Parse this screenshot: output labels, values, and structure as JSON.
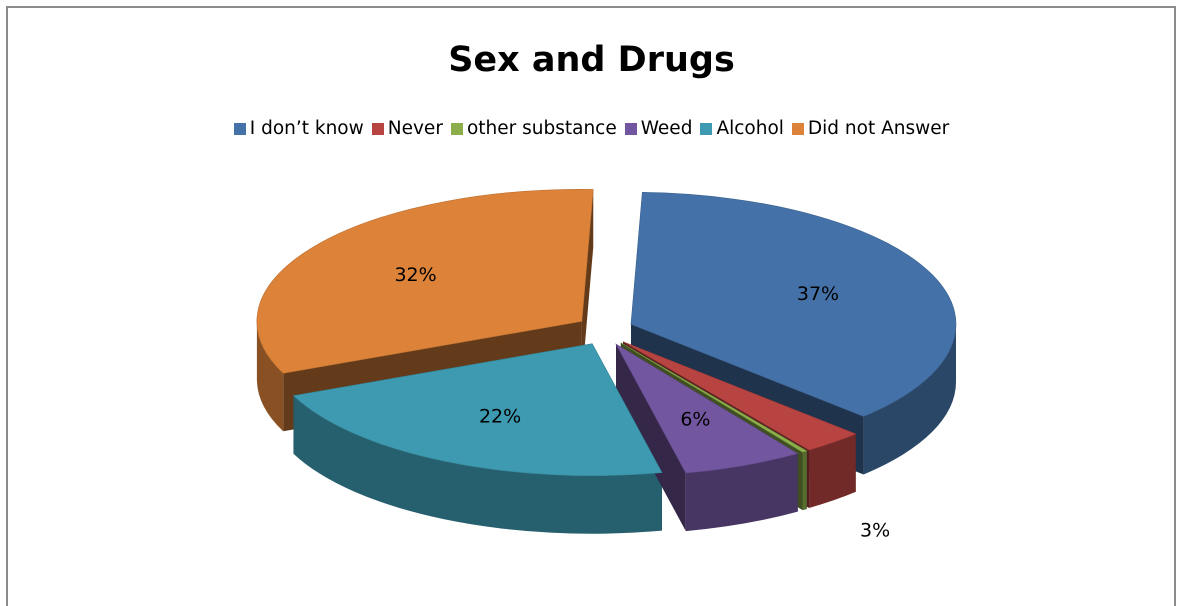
{
  "chart_data": {
    "type": "pie",
    "title": "Sex and Drugs",
    "legend_position": "top",
    "slices": [
      {
        "label": "I don’t know",
        "value": 37,
        "value_label": "37%",
        "color": "#4472a8"
      },
      {
        "label": "Never",
        "value": 3,
        "value_label": "3%",
        "color": "#b84442"
      },
      {
        "label": "other substance",
        "value": 0,
        "value_label": "0%",
        "color": "#8daf4b"
      },
      {
        "label": "Weed",
        "value": 6,
        "value_label": "6%",
        "color": "#7356a0"
      },
      {
        "label": "Alcohol",
        "value": 22,
        "value_label": "22%",
        "color": "#3d9ab0"
      },
      {
        "label": "Did not Answer",
        "value": 32,
        "value_label": "32%",
        "color": "#dd8339"
      }
    ]
  }
}
